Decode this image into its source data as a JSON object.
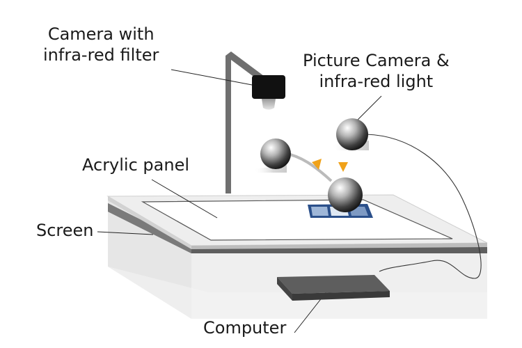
{
  "labels": {
    "camera_ir": [
      "Camera with",
      "infra-red filter"
    ],
    "picture_camera": [
      "Picture Camera &",
      "infra-red light"
    ],
    "acrylic_panel": "Acrylic panel",
    "screen": "Screen",
    "computer": "Computer"
  }
}
